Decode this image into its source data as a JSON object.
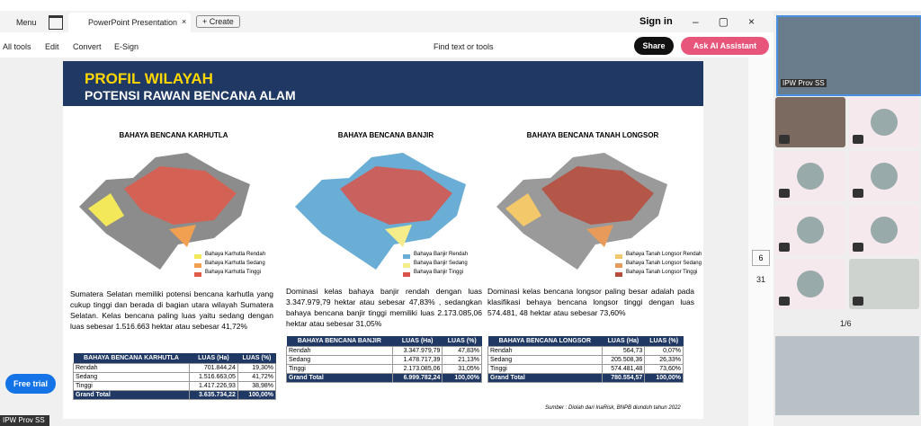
{
  "browser": {
    "menu": "Menu",
    "tab": "PowerPoint Presentation",
    "create": "Create",
    "sign_in": "Sign in"
  },
  "toolbar": {
    "all_tools": "All tools",
    "edit": "Edit",
    "convert": "Convert",
    "esign": "E-Sign",
    "find": "Find text or tools",
    "share": "Share",
    "ai": "Ask AI Assistant"
  },
  "slide": {
    "title": "PROFIL WILAYAH",
    "subtitle": "POTENSI RAWAN BENCANA ALAM",
    "panels": [
      {
        "heading": "BAHAYA BENCANA KARHUTLA",
        "legend": [
          "Bahaya Karhutla Rendah",
          "Bahaya Karhutla Sedang",
          "Bahaya Karhutla Tinggi"
        ],
        "text": "Sumatera Selatan memiliki potensi bencana karhutla yang cukup tinggi dan berada di bagian utara wilayah Sumatera Selatan. Kelas bencana paling luas yaitu sedang dengan luas sebesar 1.516.663 hektar atau sebesar 41,72%",
        "table": {
          "header": [
            "BAHAYA BENCANA KARHUTLA",
            "LUAS (Ha)",
            "LUAS (%)"
          ],
          "rows": [
            [
              "Rendah",
              "701.844,24",
              "19,30%"
            ],
            [
              "Sedang",
              "1.516.663,05",
              "41,72%"
            ],
            [
              "Tinggi",
              "1.417.226,93",
              "38,98%"
            ],
            [
              "Grand Total",
              "3.635.734,22",
              "100,00%"
            ]
          ]
        }
      },
      {
        "heading": "BAHAYA BENCANA BANJIR",
        "legend": [
          "Bahaya Banjir Rendah",
          "Bahaya Banjir Sedang",
          "Bahaya Banjir Tinggi"
        ],
        "text": "Dominasi kelas bahaya banjir rendah dengan luas 3.347.979,79 hektar atau sebesar 47,83% , sedangkan bahaya bencana banjir tinggi memiliki luas 2.173.085,06 hektar atau sebesar 31,05%",
        "table": {
          "header": [
            "BAHAYA BENCANA BANJIR",
            "LUAS (Ha)",
            "LUAS (%)"
          ],
          "rows": [
            [
              "Rendah",
              "3.347.979,79",
              "47,83%"
            ],
            [
              "Sedang",
              "1.478.717,39",
              "21,13%"
            ],
            [
              "Tinggi",
              "2.173.085,06",
              "31,05%"
            ],
            [
              "Grand Total",
              "6.999.782,24",
              "100,00%"
            ]
          ]
        }
      },
      {
        "heading": "BAHAYA BENCANA TANAH LONGSOR",
        "legend": [
          "Bahaya Tanah Longsor Rendah",
          "Bahaya Tanah Longsor Sedang",
          "Bahaya Tanah Longsor Tinggi"
        ],
        "text": "Dominasi kelas bencana longsor paling besar adalah pada klasifikasi behaya bencana longsor tinggi dengan luas 574.481, 48 hektar atau sebesar 73,60%",
        "table": {
          "header": [
            "BAHAYA BENCANA LONGSOR",
            "LUAS (Ha)",
            "LUAS (%)"
          ],
          "rows": [
            [
              "Rendah",
              "564,73",
              "0,07%"
            ],
            [
              "Sedang",
              "205.508,36",
              "26,33%"
            ],
            [
              "Tinggi",
              "574.481,48",
              "73,60%"
            ],
            [
              "Grand Total",
              "780.554,57",
              "100,00%"
            ]
          ]
        }
      }
    ],
    "source": "Sumber : Diolah dari InaRisk, BNPB diunduh tahun 2022"
  },
  "viewer": {
    "page": "6",
    "pages": "31",
    "free_trial": "Free trial",
    "presenter": "IPW Prov SS"
  },
  "meeting": {
    "main_label": "IPW Prov SS",
    "pager": "1/6"
  }
}
